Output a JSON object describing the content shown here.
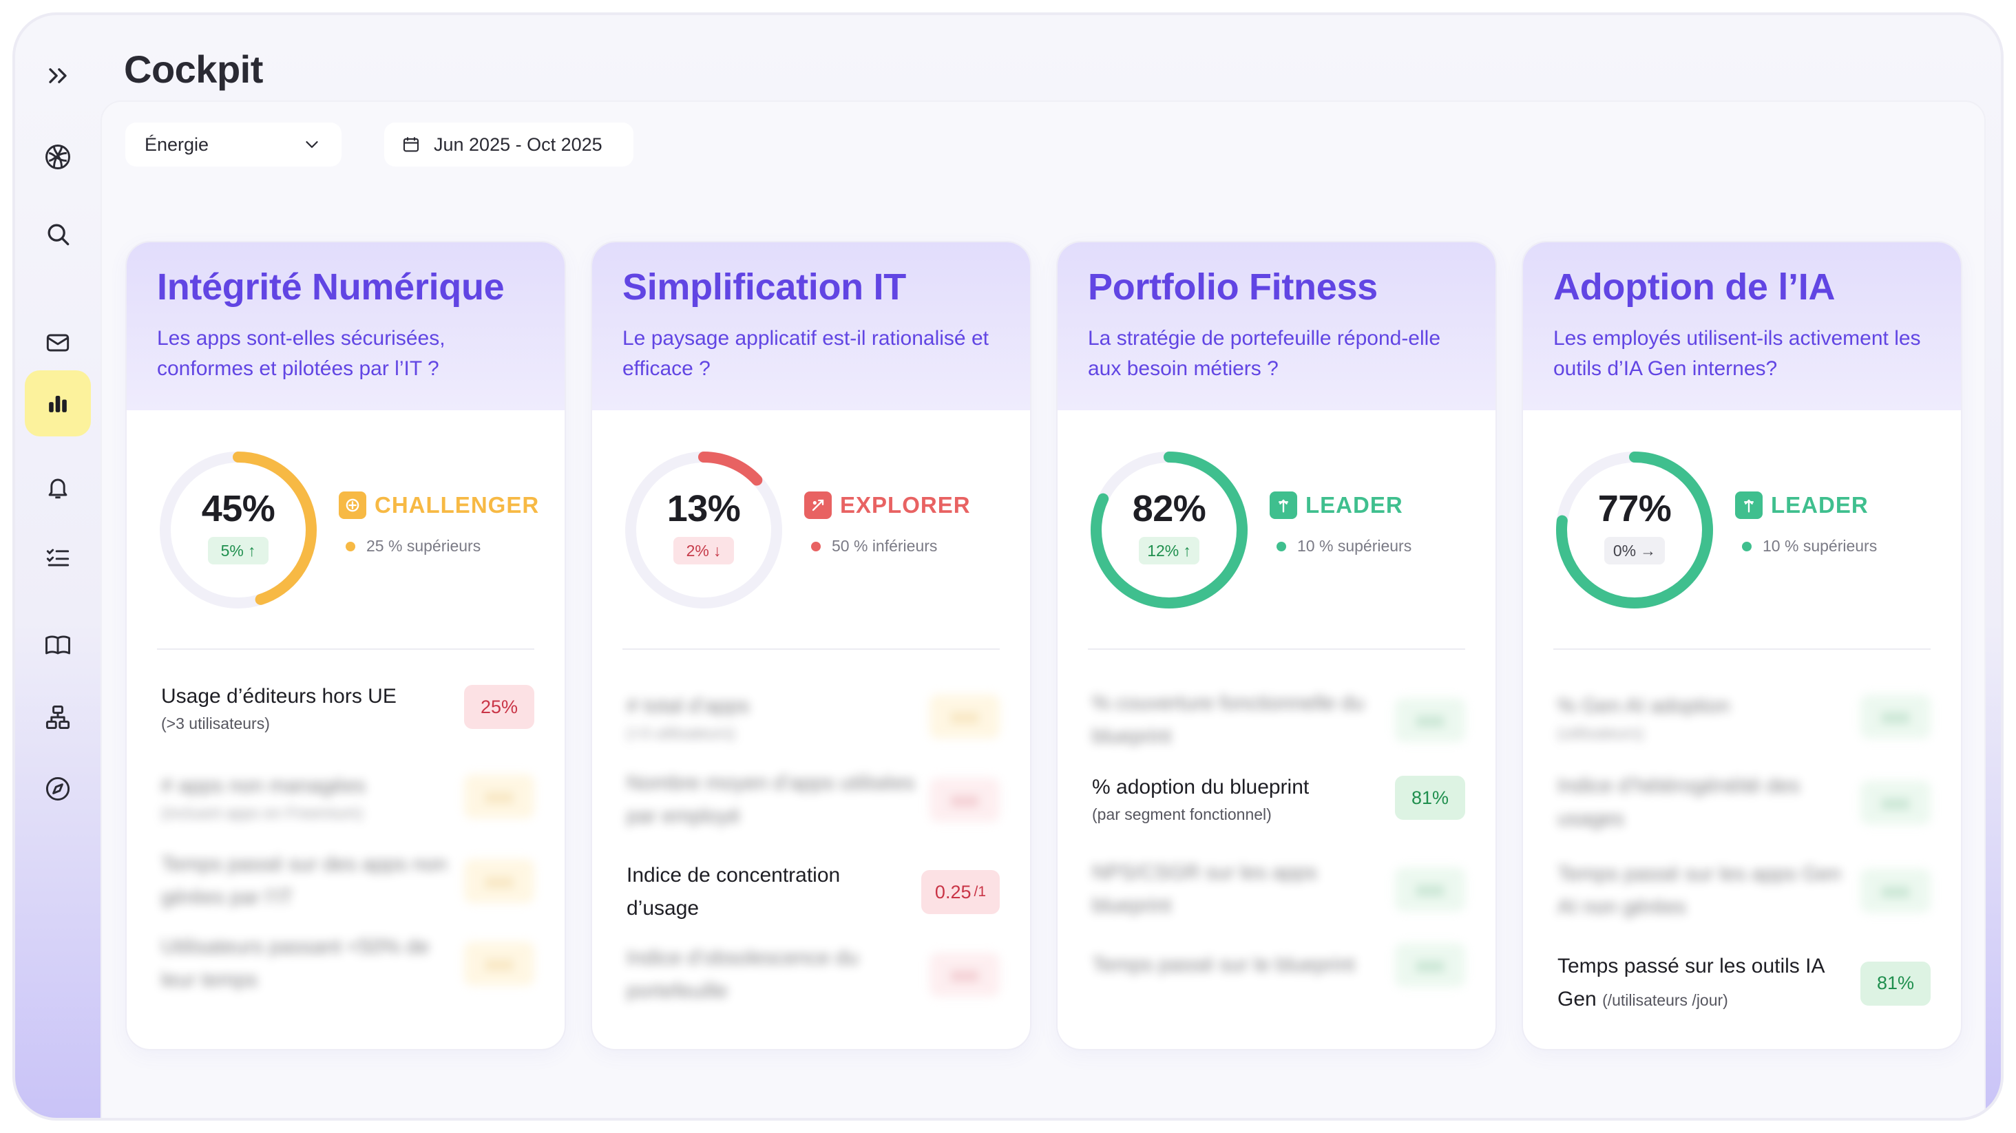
{
  "page": {
    "title": "Cockpit"
  },
  "filters": {
    "sector": "Énergie",
    "date_range": "Jun 2025 - Oct 2025"
  },
  "colors": {
    "accent": "#6145E3",
    "challenger": "#F7B944",
    "explorer": "#E86262",
    "leader": "#3FBF8E"
  },
  "sidebar": {
    "items": [
      {
        "icon": "chevron-double-right-icon"
      },
      {
        "icon": "logo-icon"
      },
      {
        "icon": "search-icon"
      },
      {
        "icon": "mail-icon"
      },
      {
        "icon": "bar-chart-icon",
        "active": true
      },
      {
        "icon": "bell-icon"
      },
      {
        "icon": "checklist-icon"
      },
      {
        "icon": "book-icon"
      },
      {
        "icon": "hierarchy-icon"
      },
      {
        "icon": "compass-icon"
      }
    ]
  },
  "cards": [
    {
      "title": "Intégrité Numérique",
      "subtitle": "Les apps sont-elles sécurisées, conformes et pilotées par l’IT ?",
      "score": "45%",
      "score_fraction": 0.45,
      "delta": "5%",
      "delta_dir": "up",
      "badge": "CHALLENGER",
      "rank": "25 % supérieurs",
      "kpis": [
        {
          "label": "Usage d’éditeurs hors UE",
          "note": "(>3 utilisateurs)",
          "value": "25%",
          "blurred": false
        },
        {
          "label": "# apps non managées",
          "note": "(incluant apps en Freemium)",
          "value": "xxx",
          "blurred": true
        },
        {
          "label": "Temps passé sur des apps non gérées par l’IT",
          "note": "",
          "value": "xxx",
          "blurred": true
        },
        {
          "label": "Utilisateurs passant <50% de leur temps",
          "note": "",
          "value": "xxx",
          "blurred": true
        }
      ]
    },
    {
      "title": "Simplification IT",
      "subtitle": "Le paysage applicatif est-il rationalisé et efficace ?",
      "score": "13%",
      "score_fraction": 0.13,
      "delta": "2%",
      "delta_dir": "down",
      "badge": "EXPLORER",
      "rank": "50 % inférieurs",
      "kpis": [
        {
          "label": "# total d’apps",
          "note": "(>3 utilisateurs)",
          "value": "xxx",
          "blurred": true
        },
        {
          "label": "Nombre moyen d’apps utilisées par employé",
          "note": "",
          "value": "xxx",
          "blurred": true
        },
        {
          "label": "Indice de concentration d’usage",
          "note": "",
          "value": "0.25",
          "value_suffix": "/1",
          "blurred": false
        },
        {
          "label": "Indice d’obsolescence du portefeuille",
          "note": "",
          "value": "xxx",
          "blurred": true
        }
      ]
    },
    {
      "title": "Portfolio Fitness",
      "subtitle": "La stratégie de portefeuille répond-elle aux besoin métiers ?",
      "score": "82%",
      "score_fraction": 0.82,
      "delta": "12%",
      "delta_dir": "up",
      "badge": "LEADER",
      "rank": "10 % supérieurs",
      "kpis": [
        {
          "label": "% couverture fonctionnelle du blueprint",
          "note": "",
          "value": "xxx",
          "blurred": true
        },
        {
          "label": "% adoption du blueprint",
          "note": "(par segment fonctionnel)",
          "value": "81%",
          "blurred": false
        },
        {
          "label": "NPS/CSGR sur les apps blueprint",
          "note": "",
          "value": "xxx",
          "blurred": true
        },
        {
          "label": "Temps passé sur le blueprint",
          "note": "",
          "value": "xxx",
          "blurred": true
        }
      ]
    },
    {
      "title": "Adoption de l’IA",
      "subtitle": "Les employés utilisent-ils activement les outils d’IA Gen internes?",
      "score": "77%",
      "score_fraction": 0.77,
      "delta": "0%",
      "delta_dir": "flat",
      "badge": "LEADER",
      "rank": "10 % supérieurs",
      "kpis": [
        {
          "label": "% Gen AI adoption",
          "note": "(utilisateurs)",
          "value": "xxx",
          "blurred": true
        },
        {
          "label": "Indice d’hétérogénéité des usages",
          "note": "",
          "value": "xxx",
          "blurred": true
        },
        {
          "label": "Temps passé sur les apps Gen AI non gérées",
          "note": "",
          "value": "xxx",
          "blurred": true
        },
        {
          "label": "Temps passé sur les outils IA Gen",
          "note": "(/utilisateurs /jour)",
          "value": "81%",
          "blurred": false
        }
      ]
    }
  ]
}
